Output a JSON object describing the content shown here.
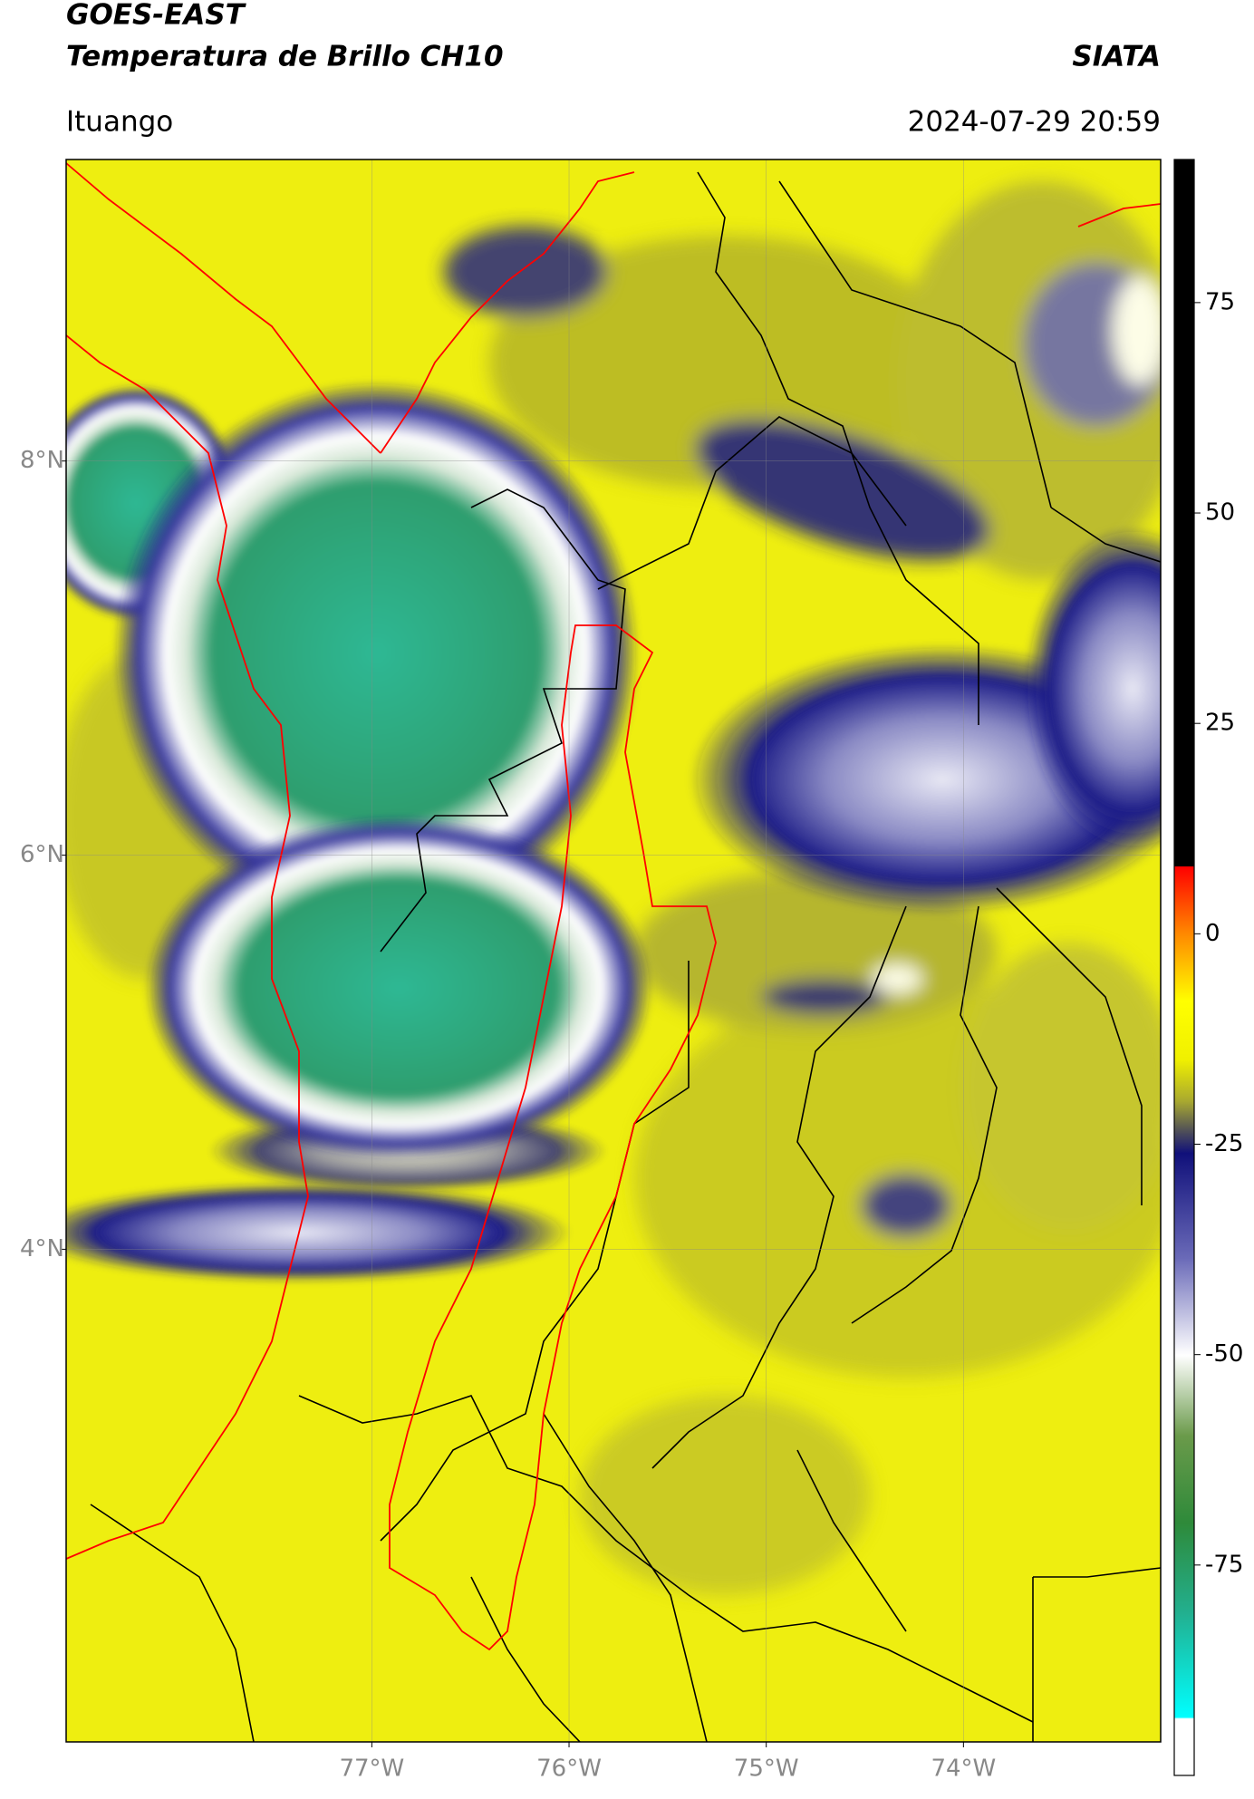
{
  "header": {
    "satellite": "GOES-EAST",
    "product": "Temperatura de Brillo CH10",
    "organization": "SIATA",
    "location": "Ituango",
    "datetime": "2024-07-29 20:59"
  },
  "map": {
    "xlim": [
      -78.55,
      -73.0
    ],
    "ylim": [
      1.5,
      9.53
    ],
    "xticks": [
      {
        "value": -77,
        "label": "77°W"
      },
      {
        "value": -76,
        "label": "76°W"
      },
      {
        "value": -75,
        "label": "75°W"
      },
      {
        "value": -74,
        "label": "74°W"
      }
    ],
    "yticks": [
      {
        "value": 8,
        "label": "8°N"
      },
      {
        "value": 6,
        "label": "6°N"
      },
      {
        "value": 4,
        "label": "4°N"
      }
    ],
    "grid": true
  },
  "colorbar": {
    "lim": [
      -100,
      92
    ],
    "ticks": [
      75,
      50,
      25,
      0,
      -25,
      -50,
      -75
    ]
  }
}
